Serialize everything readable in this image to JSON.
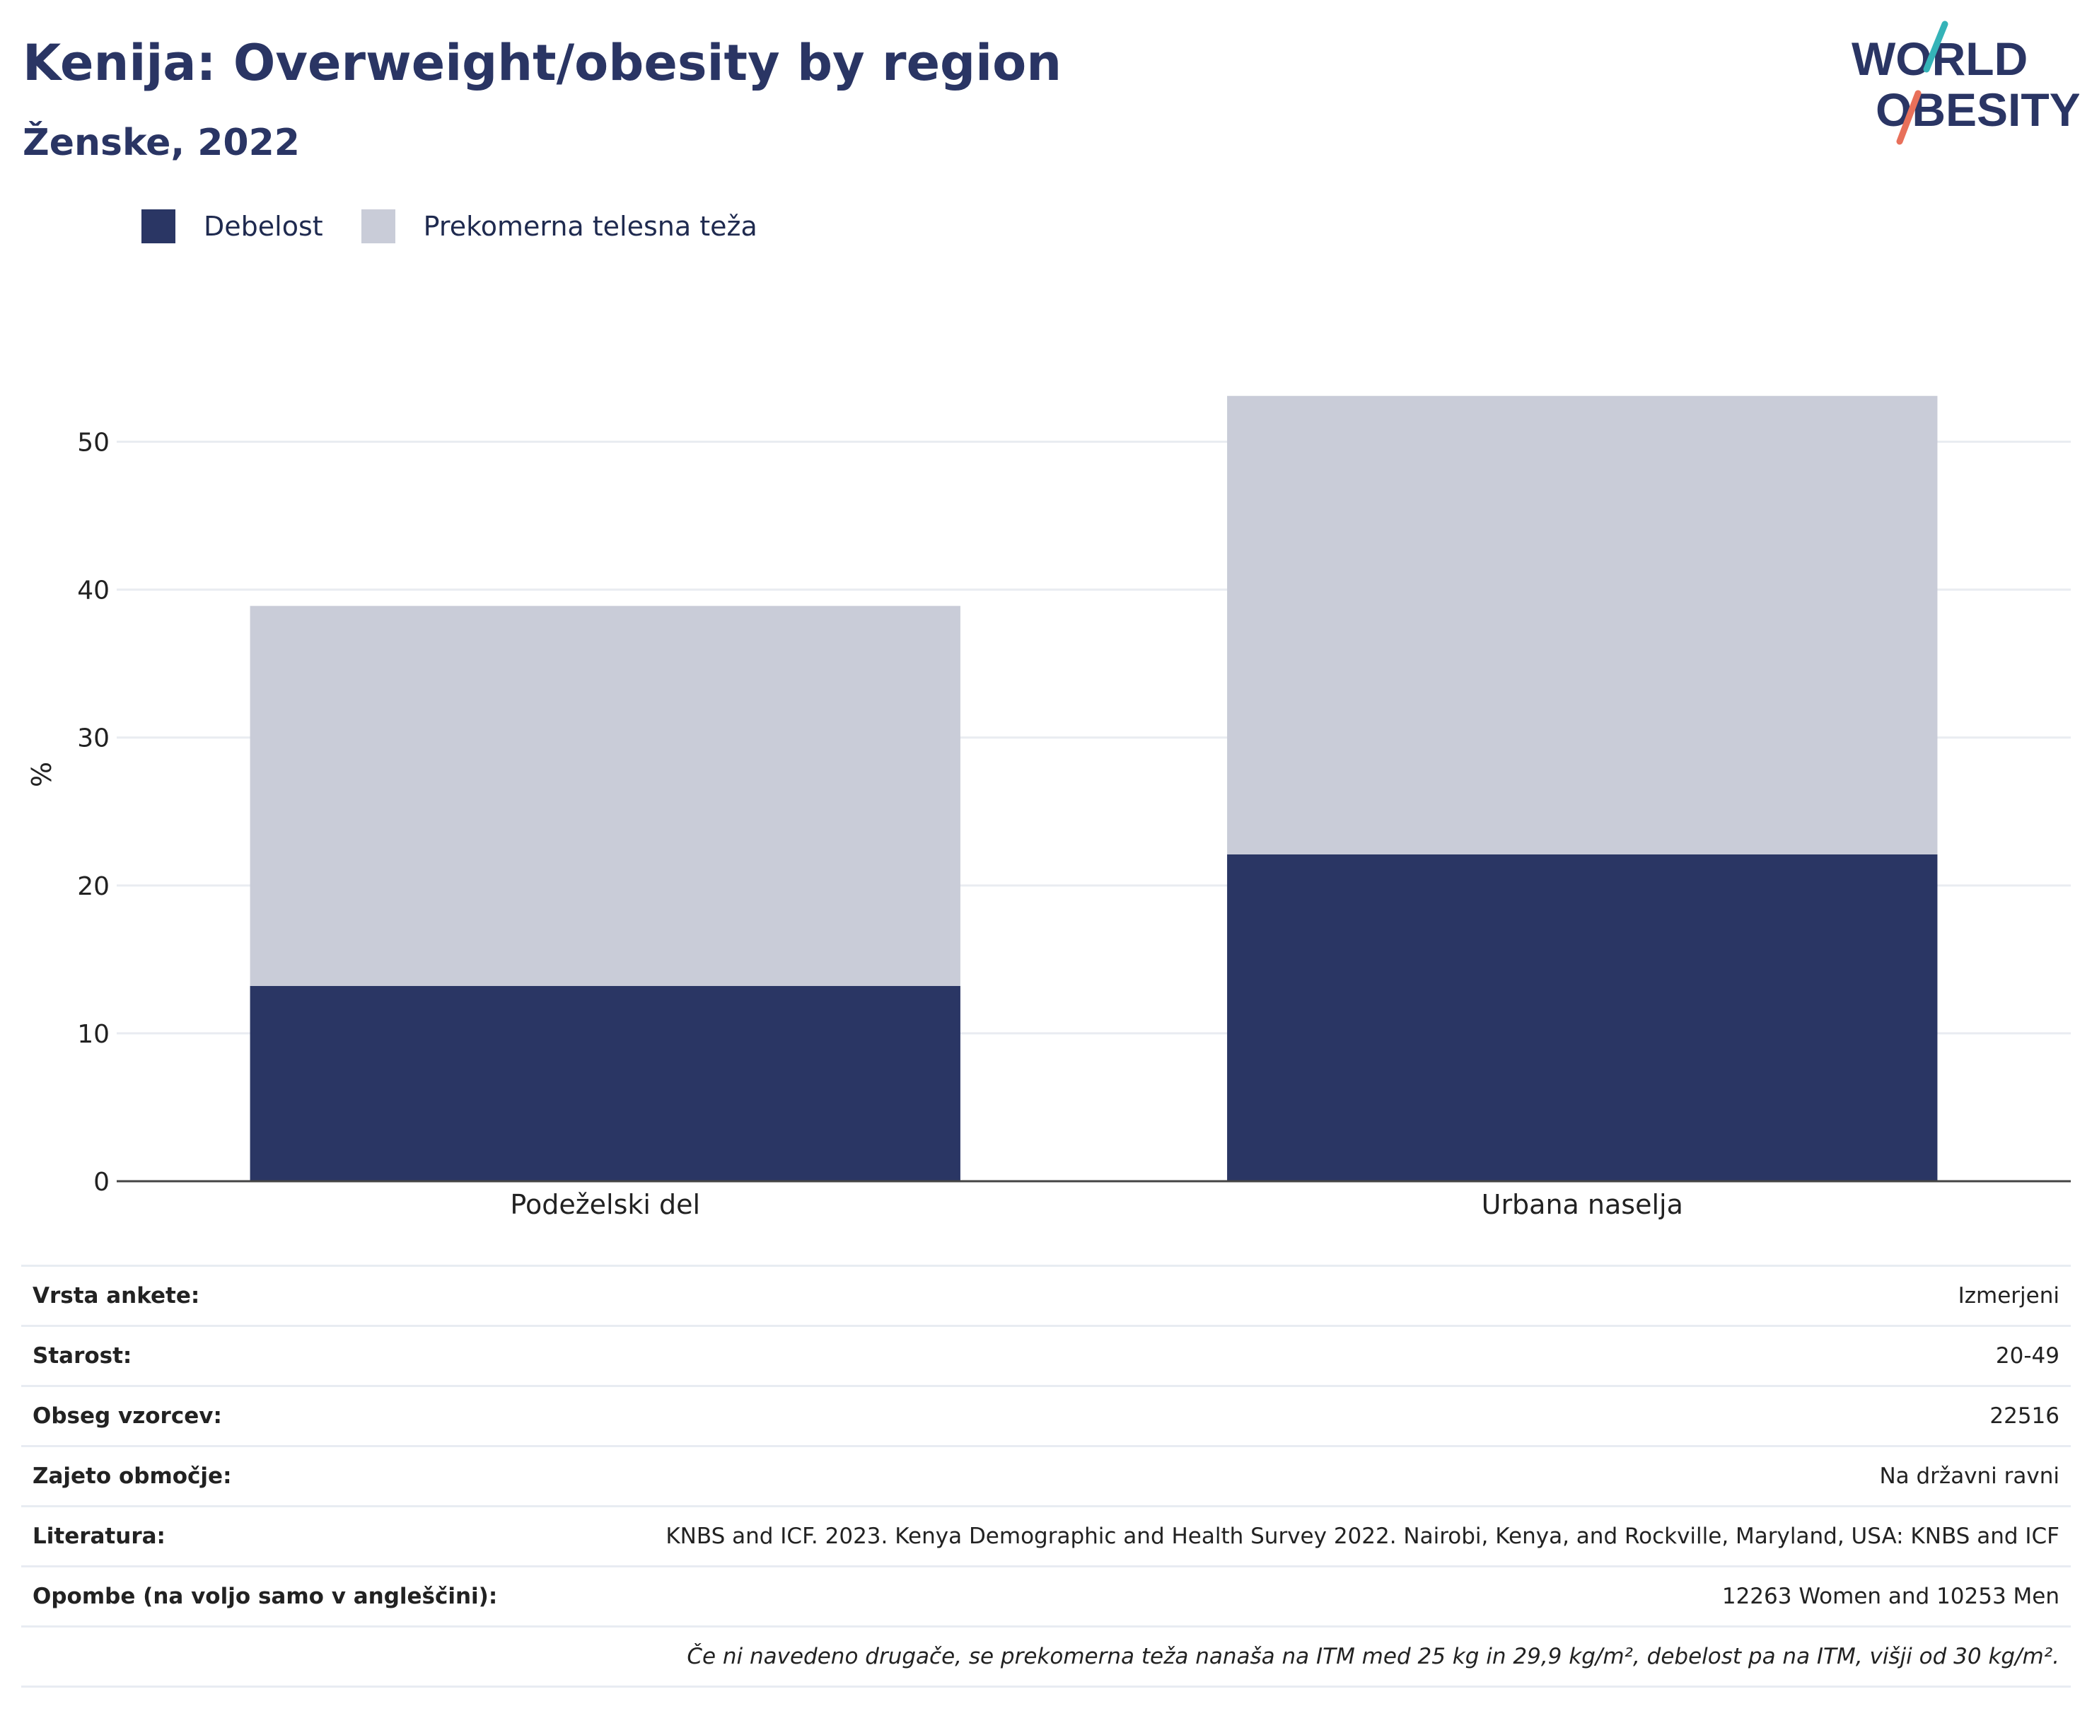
{
  "header": {
    "title": "Kenija: Overweight/obesity by region",
    "subtitle": "Ženske, 2022",
    "logo_text": [
      "WORLD",
      "OBESITY"
    ]
  },
  "legend": [
    {
      "label": "Debelost",
      "color": "#2a3664"
    },
    {
      "label": "Prekomerna telesna teža",
      "color": "#c9ccd8"
    }
  ],
  "chart_data": {
    "type": "bar",
    "stacked": true,
    "categories": [
      "Podeželski del",
      "Urbana naselja"
    ],
    "series": [
      {
        "name": "Debelost",
        "values": [
          13.2,
          22.1
        ],
        "color": "#2a3664"
      },
      {
        "name": "Prekomerna telesna teža",
        "values": [
          25.7,
          31.0
        ],
        "color": "#c9ccd8"
      }
    ],
    "ylabel": "%",
    "ylim": [
      0,
      55
    ],
    "yticks": [
      0,
      10,
      20,
      30,
      40,
      50
    ],
    "grid": true,
    "legend_position": "top-left"
  },
  "info": [
    {
      "label": "Vrsta ankete:",
      "value": "Izmerjeni"
    },
    {
      "label": "Starost:",
      "value": "20-49"
    },
    {
      "label": "Obseg vzorcev:",
      "value": "22516"
    },
    {
      "label": "Zajeto območje:",
      "value": "Na državni ravni"
    },
    {
      "label": "Literatura:",
      "value": "KNBS and ICF. 2023. Kenya Demographic and Health Survey 2022. Nairobi, Kenya, and Rockville, Maryland, USA: KNBS and ICF"
    },
    {
      "label": "Opombe (na voljo samo v angleščini):",
      "value": "12263 Women and 10253 Men"
    }
  ],
  "footnote": "Če ni navedeno drugače, se prekomerna teža nanaša na ITM med 25 kg in 29,9 kg/m², debelost pa na ITM, višji od 30 kg/m²."
}
